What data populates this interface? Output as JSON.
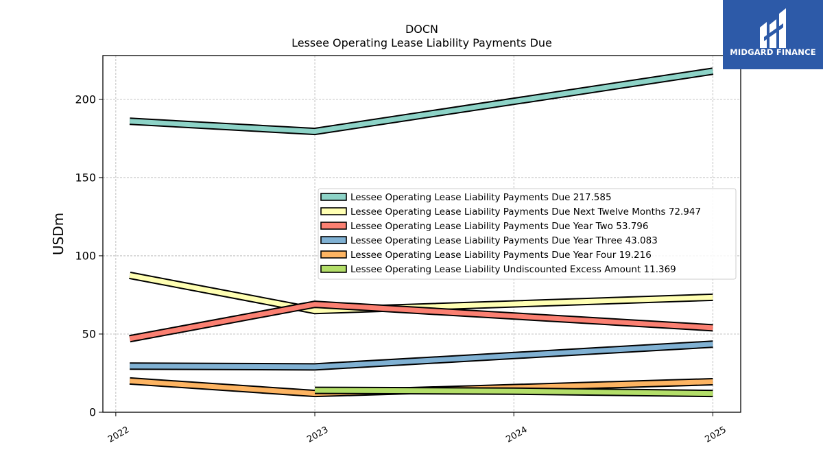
{
  "chart_data": {
    "type": "line",
    "title": "DOCN",
    "subtitle": "Lessee Operating Lease Liability Payments Due",
    "ylabel": "USDm",
    "xlabel": "",
    "x": [
      "2022",
      "2023",
      "2024",
      "2025"
    ],
    "ylim": [
      0,
      228
    ],
    "yticks": [
      0,
      50,
      100,
      150,
      200
    ],
    "grid": true,
    "legend_position": "center-right",
    "series": [
      {
        "name": "Lessee Operating Lease Liability Payments Due",
        "legend_value": "217.585",
        "color": "#8dd3c7",
        "points": [
          [
            2022.07,
            186
          ],
          [
            2023,
            179.5
          ],
          [
            2025,
            218
          ]
        ]
      },
      {
        "name": "Lessee Operating Lease Liability Payments Due Next Twelve Months",
        "legend_value": "72.947",
        "color": "#ffffb3",
        "points": [
          [
            2022.07,
            87.5
          ],
          [
            2023,
            65
          ],
          [
            2025,
            73.5
          ]
        ]
      },
      {
        "name": "Lessee Operating Lease Liability Payments Due Year Two",
        "legend_value": "53.796",
        "color": "#fb8072",
        "points": [
          [
            2022.07,
            47
          ],
          [
            2023,
            69
          ],
          [
            2025,
            54
          ]
        ]
      },
      {
        "name": "Lessee Operating Lease Liability Payments Due Year Three",
        "legend_value": "43.083",
        "color": "#80b1d3",
        "points": [
          [
            2022.07,
            29.5
          ],
          [
            2023,
            29
          ],
          [
            2025,
            43.5
          ]
        ]
      },
      {
        "name": "Lessee Operating Lease Liability Payments Due Year Four",
        "legend_value": "19.216",
        "color": "#fdb462",
        "points": [
          [
            2022.07,
            20
          ],
          [
            2023,
            12
          ],
          [
            2025,
            19.5
          ]
        ]
      },
      {
        "name": "Lessee Operating Lease Liability Undiscounted Excess Amount",
        "legend_value": "11.369",
        "color": "#b3de69",
        "points": [
          [
            2023,
            14
          ],
          [
            2024,
            13.5
          ],
          [
            2025,
            12
          ]
        ]
      }
    ]
  },
  "logo": {
    "text": "MIDGARD FINANCE",
    "background": "#2d5aa8"
  }
}
